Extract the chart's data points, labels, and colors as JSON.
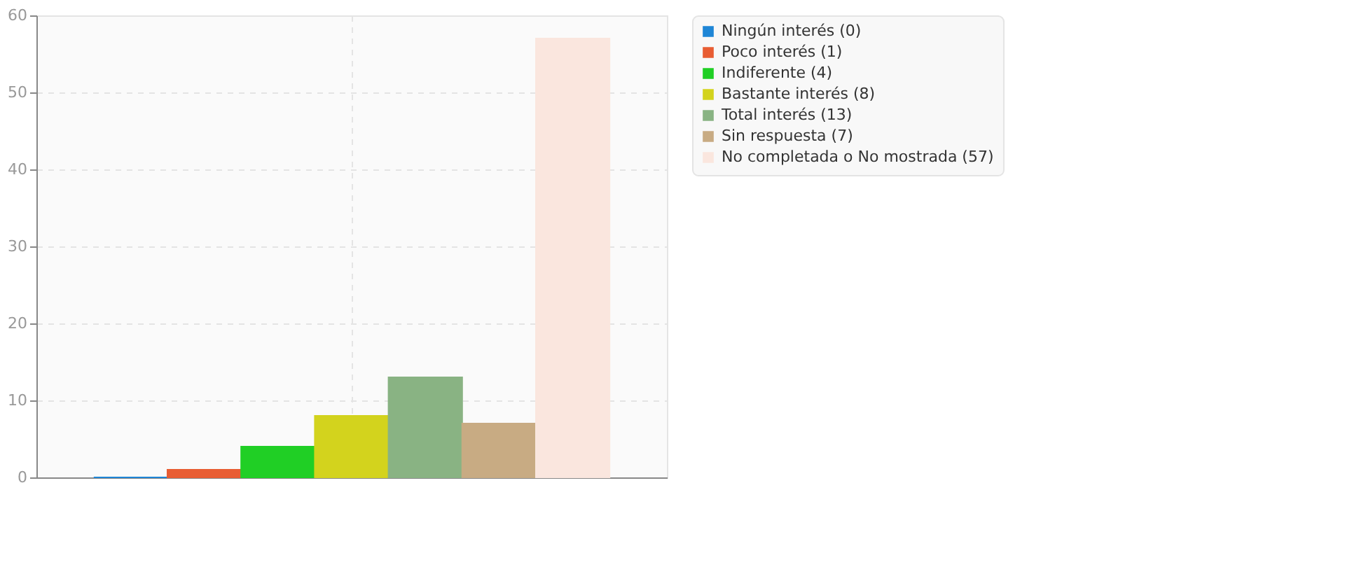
{
  "chart_data": {
    "type": "bar",
    "categories": [
      null
    ],
    "series": [
      {
        "name": "Ningún interés (0)",
        "color": "#1f86d6",
        "values": [
          0
        ]
      },
      {
        "name": "Poco interés (1)",
        "color": "#e85d33",
        "values": [
          1
        ]
      },
      {
        "name": "Indiferente (4)",
        "color": "#20cf25",
        "values": [
          4
        ]
      },
      {
        "name": "Bastante interés (8)",
        "color": "#d3d31d",
        "values": [
          8
        ]
      },
      {
        "name": "Total interés (13)",
        "color": "#89b383",
        "values": [
          13
        ]
      },
      {
        "name": "Sin respuesta (7)",
        "color": "#c8ab83",
        "values": [
          7
        ]
      },
      {
        "name": "No completada o No mostrada (57)",
        "color": "#fae6de",
        "values": [
          57
        ]
      }
    ],
    "ylim": [
      0,
      60
    ],
    "yticks": [
      0,
      10,
      20,
      30,
      40,
      50,
      60
    ],
    "grid": true,
    "legend": "top right",
    "tick_labels": "y"
  }
}
